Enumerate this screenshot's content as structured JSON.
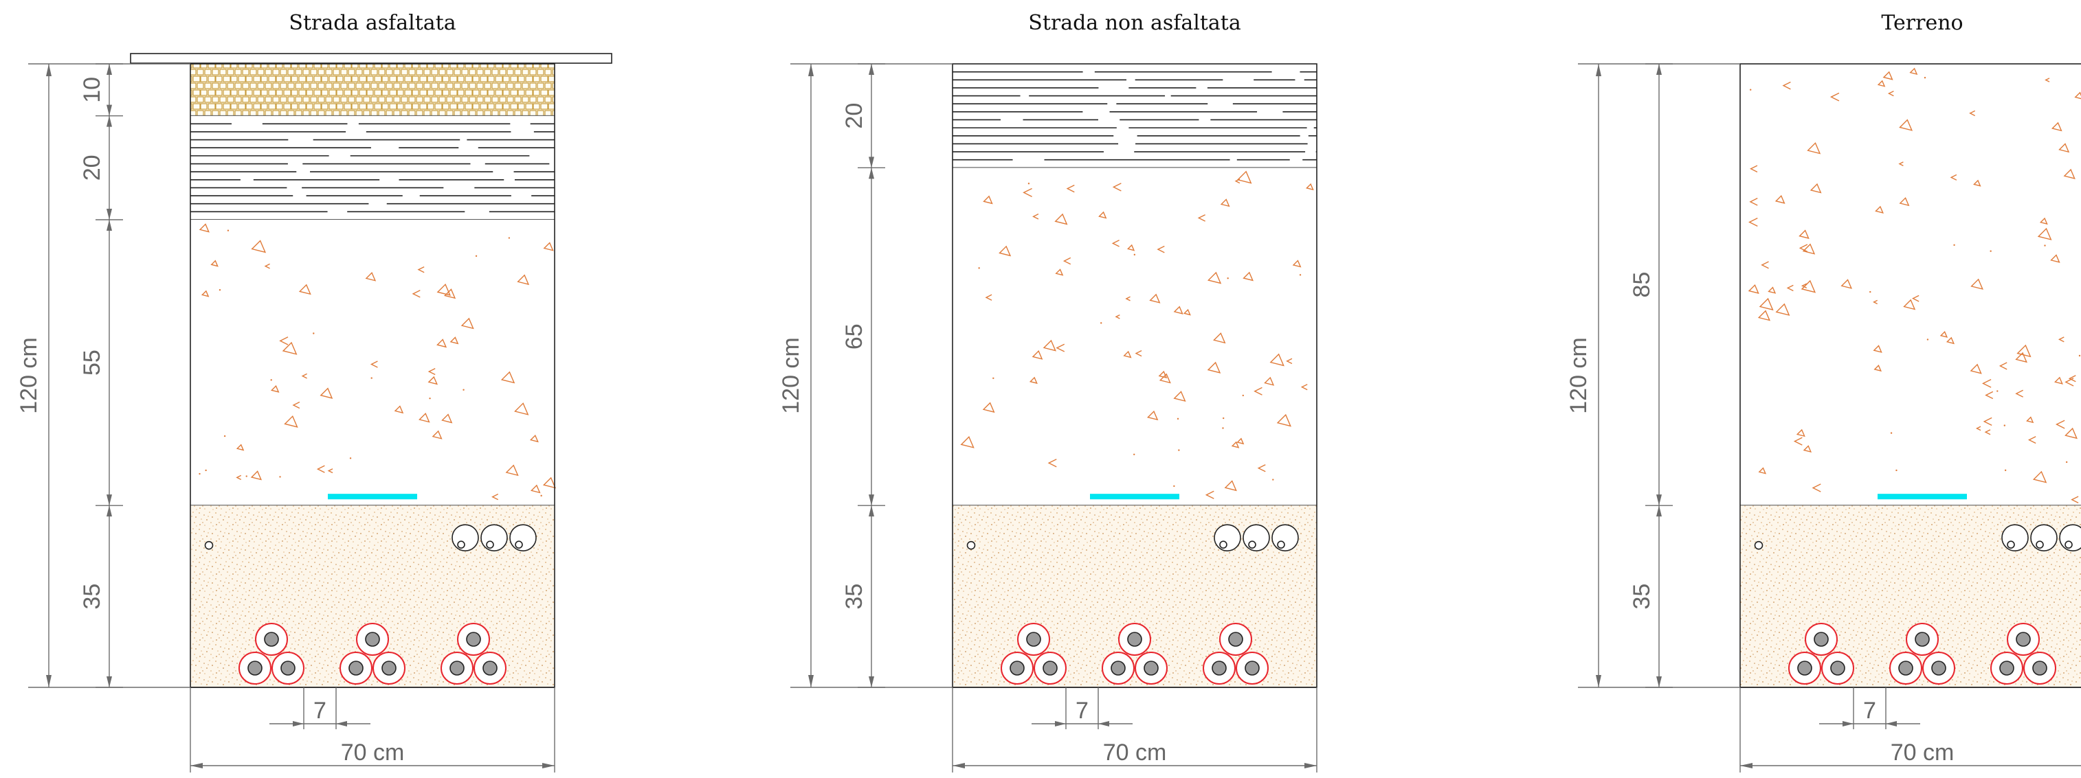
{
  "sections": [
    {
      "id": "asfaltata",
      "title": "Strada asfaltata",
      "total_depth_label": "120 cm",
      "width_label": "70 cm",
      "spacing_label": "7",
      "layers": [
        {
          "kind": "asphalt",
          "depth_cm": 10,
          "label": "10"
        },
        {
          "kind": "base",
          "depth_cm": 20,
          "label": "20"
        },
        {
          "kind": "fill",
          "depth_cm": 55,
          "label": "55"
        },
        {
          "kind": "sand",
          "depth_cm": 35,
          "label": "35"
        }
      ],
      "has_asphalt_overlay": true
    },
    {
      "id": "non-asfaltata",
      "title": "Strada non asfaltata",
      "total_depth_label": "120 cm",
      "width_label": "70 cm",
      "spacing_label": "7",
      "layers": [
        {
          "kind": "base",
          "depth_cm": 20,
          "label": "20"
        },
        {
          "kind": "fill",
          "depth_cm": 65,
          "label": "65"
        },
        {
          "kind": "sand",
          "depth_cm": 35,
          "label": "35"
        }
      ],
      "has_asphalt_overlay": false
    },
    {
      "id": "terreno",
      "title": "Terreno",
      "total_depth_label": "120 cm",
      "width_label": "70 cm",
      "spacing_label": "7",
      "layers": [
        {
          "kind": "fill",
          "depth_cm": 85,
          "label": "85"
        },
        {
          "kind": "sand",
          "depth_cm": 35,
          "label": "35"
        }
      ],
      "has_asphalt_overlay": false
    }
  ],
  "colors": {
    "warning_tape": "#00e5f0",
    "cable_sheath": "#e8262e",
    "pebbles": "#e07b39",
    "asphalt_hatch": "#c79a3a",
    "dimension_lines": "#6b6b6b"
  }
}
